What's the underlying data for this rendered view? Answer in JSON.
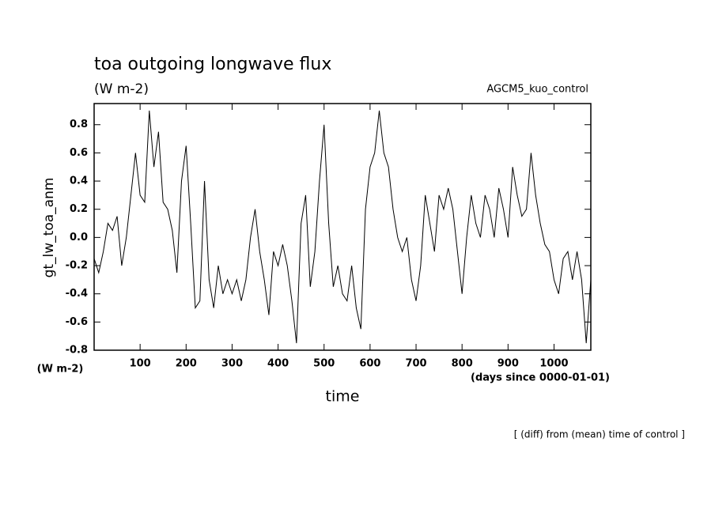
{
  "chart_data": {
    "type": "line",
    "title": "toa outgoing longwave flux",
    "subtitle": "(W m-2)",
    "annotation": "AGCM5_kuo_control",
    "y_label": "gt_lw_toa_anm",
    "y_unit": "(W m-2)",
    "x_unit": "(days since 0000-01-01)",
    "x_label": "time",
    "footnote": "[ (diff) from (mean) time of control ]",
    "x": [
      0,
      10,
      20,
      30,
      40,
      50,
      60,
      70,
      80,
      90,
      100,
      110,
      120,
      130,
      140,
      150,
      160,
      170,
      180,
      190,
      200,
      210,
      220,
      230,
      240,
      250,
      260,
      270,
      280,
      290,
      300,
      310,
      320,
      330,
      340,
      350,
      360,
      370,
      380,
      390,
      400,
      410,
      420,
      430,
      440,
      450,
      460,
      470,
      480,
      490,
      500,
      510,
      520,
      530,
      540,
      550,
      560,
      570,
      580,
      590,
      600,
      610,
      620,
      630,
      640,
      650,
      660,
      670,
      680,
      690,
      700,
      710,
      720,
      730,
      740,
      750,
      760,
      770,
      780,
      790,
      800,
      810,
      820,
      830,
      840,
      850,
      860,
      870,
      880,
      890,
      900,
      910,
      920,
      930,
      940,
      950,
      960,
      970,
      980,
      990,
      1000,
      1010,
      1020,
      1030,
      1040,
      1050,
      1060,
      1070,
      1080
    ],
    "series": [
      {
        "name": "gt_lw_toa_anm",
        "color": "#000000",
        "values": [
          -0.15,
          -0.25,
          -0.1,
          0.1,
          0.05,
          0.15,
          -0.2,
          0.0,
          0.3,
          0.6,
          0.3,
          0.25,
          0.9,
          0.5,
          0.75,
          0.25,
          0.2,
          0.05,
          -0.25,
          0.4,
          0.65,
          0.1,
          -0.5,
          -0.45,
          0.4,
          -0.3,
          -0.5,
          -0.2,
          -0.4,
          -0.3,
          -0.4,
          -0.3,
          -0.45,
          -0.3,
          0.0,
          0.2,
          -0.1,
          -0.3,
          -0.55,
          -0.1,
          -0.2,
          -0.05,
          -0.2,
          -0.45,
          -0.75,
          0.1,
          0.3,
          -0.35,
          -0.1,
          0.4,
          0.8,
          0.1,
          -0.35,
          -0.2,
          -0.4,
          -0.45,
          -0.2,
          -0.5,
          -0.65,
          0.2,
          0.5,
          0.6,
          0.9,
          0.6,
          0.5,
          0.2,
          0.0,
          -0.1,
          0.0,
          -0.3,
          -0.45,
          -0.2,
          0.3,
          0.1,
          -0.1,
          0.3,
          0.2,
          0.35,
          0.2,
          -0.1,
          -0.4,
          0.0,
          0.3,
          0.1,
          0.0,
          0.3,
          0.2,
          0.0,
          0.35,
          0.2,
          0.0,
          0.5,
          0.3,
          0.15,
          0.2,
          0.6,
          0.3,
          0.1,
          -0.05,
          -0.1,
          -0.3,
          -0.4,
          -0.15,
          -0.1,
          -0.3,
          -0.1,
          -0.3,
          -0.75,
          -0.3
        ]
      }
    ],
    "xlim": [
      0,
      1080
    ],
    "xticks": [
      100,
      200,
      300,
      400,
      500,
      600,
      700,
      800,
      900,
      1000
    ],
    "ylim": [
      -0.8,
      0.95
    ],
    "yticks": [
      -0.8,
      -0.6,
      -0.4,
      -0.2,
      {
        "value": 0,
        "label": "0.0"
      },
      0.2,
      0.4,
      0.6,
      0.8
    ]
  }
}
